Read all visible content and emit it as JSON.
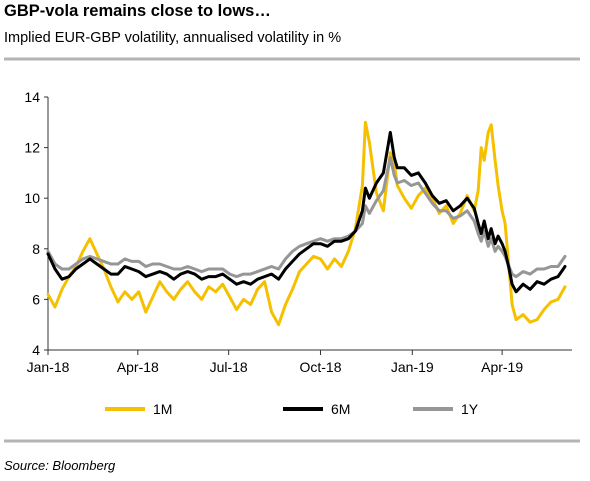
{
  "title": "GBP-vola remains close to lows…",
  "subtitle": "Implied EUR-GBP volatility, annualised volatility in %",
  "source": "Source: Bloomberg",
  "colors": {
    "1M": "#F5C000",
    "6M": "#000000",
    "1Y": "#969696",
    "rule": "#b4b4b4",
    "axis": "#333333"
  },
  "chart_data": {
    "type": "line",
    "ylim": [
      4,
      14
    ],
    "yticks": [
      4,
      6,
      8,
      10,
      12,
      14
    ],
    "xlim": [
      "2018-01-01",
      "2019-06-10"
    ],
    "xticks": [
      {
        "date": "2018-01-01",
        "label": "Jan-18"
      },
      {
        "date": "2018-04-01",
        "label": "Apr-18"
      },
      {
        "date": "2018-07-01",
        "label": "Jul-18"
      },
      {
        "date": "2018-10-01",
        "label": "Oct-18"
      },
      {
        "date": "2019-01-01",
        "label": "Jan-19"
      },
      {
        "date": "2019-04-01",
        "label": "Apr-19"
      }
    ],
    "legend_position": "bottom",
    "series": [
      {
        "name": "1M",
        "points": [
          [
            "2018-01-01",
            6.2
          ],
          [
            "2018-01-08",
            5.7
          ],
          [
            "2018-01-15",
            6.4
          ],
          [
            "2018-01-22",
            6.9
          ],
          [
            "2018-01-29",
            7.3
          ],
          [
            "2018-02-05",
            7.9
          ],
          [
            "2018-02-12",
            8.4
          ],
          [
            "2018-02-19",
            7.8
          ],
          [
            "2018-02-26",
            7.2
          ],
          [
            "2018-03-05",
            6.5
          ],
          [
            "2018-03-12",
            5.9
          ],
          [
            "2018-03-19",
            6.3
          ],
          [
            "2018-03-26",
            6.0
          ],
          [
            "2018-04-02",
            6.3
          ],
          [
            "2018-04-09",
            5.5
          ],
          [
            "2018-04-16",
            6.1
          ],
          [
            "2018-04-23",
            6.7
          ],
          [
            "2018-04-30",
            6.3
          ],
          [
            "2018-05-07",
            6.0
          ],
          [
            "2018-05-14",
            6.4
          ],
          [
            "2018-05-21",
            6.7
          ],
          [
            "2018-05-28",
            6.3
          ],
          [
            "2018-06-04",
            6.0
          ],
          [
            "2018-06-11",
            6.5
          ],
          [
            "2018-06-18",
            6.3
          ],
          [
            "2018-06-25",
            6.6
          ],
          [
            "2018-07-02",
            6.1
          ],
          [
            "2018-07-09",
            5.6
          ],
          [
            "2018-07-16",
            6.0
          ],
          [
            "2018-07-23",
            5.8
          ],
          [
            "2018-07-30",
            6.4
          ],
          [
            "2018-08-06",
            6.7
          ],
          [
            "2018-08-13",
            5.5
          ],
          [
            "2018-08-20",
            5.0
          ],
          [
            "2018-08-27",
            5.8
          ],
          [
            "2018-09-03",
            6.4
          ],
          [
            "2018-09-10",
            7.1
          ],
          [
            "2018-09-17",
            7.4
          ],
          [
            "2018-09-24",
            7.7
          ],
          [
            "2018-10-01",
            7.6
          ],
          [
            "2018-10-08",
            7.2
          ],
          [
            "2018-10-15",
            7.6
          ],
          [
            "2018-10-22",
            7.3
          ],
          [
            "2018-10-29",
            7.9
          ],
          [
            "2018-11-05",
            8.8
          ],
          [
            "2018-11-12",
            10.5
          ],
          [
            "2018-11-15",
            13.0
          ],
          [
            "2018-11-19",
            12.2
          ],
          [
            "2018-11-26",
            10.2
          ],
          [
            "2018-12-03",
            9.5
          ],
          [
            "2018-12-10",
            11.8
          ],
          [
            "2018-12-14",
            11.4
          ],
          [
            "2018-12-17",
            10.5
          ],
          [
            "2018-12-24",
            10.0
          ],
          [
            "2018-12-31",
            9.6
          ],
          [
            "2019-01-07",
            10.1
          ],
          [
            "2019-01-14",
            10.4
          ],
          [
            "2019-01-21",
            10.0
          ],
          [
            "2019-01-28",
            9.4
          ],
          [
            "2019-02-04",
            9.7
          ],
          [
            "2019-02-11",
            9.0
          ],
          [
            "2019-02-18",
            9.4
          ],
          [
            "2019-02-25",
            10.1
          ],
          [
            "2019-03-04",
            9.5
          ],
          [
            "2019-03-08",
            10.3
          ],
          [
            "2019-03-11",
            12.0
          ],
          [
            "2019-03-14",
            11.5
          ],
          [
            "2019-03-18",
            12.6
          ],
          [
            "2019-03-21",
            12.9
          ],
          [
            "2019-03-25",
            11.5
          ],
          [
            "2019-03-28",
            10.5
          ],
          [
            "2019-04-01",
            9.5
          ],
          [
            "2019-04-04",
            9.0
          ],
          [
            "2019-04-08",
            7.2
          ],
          [
            "2019-04-11",
            5.8
          ],
          [
            "2019-04-15",
            5.2
          ],
          [
            "2019-04-22",
            5.4
          ],
          [
            "2019-04-29",
            5.1
          ],
          [
            "2019-05-06",
            5.2
          ],
          [
            "2019-05-13",
            5.6
          ],
          [
            "2019-05-20",
            5.9
          ],
          [
            "2019-05-27",
            6.0
          ],
          [
            "2019-06-03",
            6.5
          ]
        ]
      },
      {
        "name": "6M",
        "points": [
          [
            "2018-01-01",
            7.8
          ],
          [
            "2018-01-08",
            7.2
          ],
          [
            "2018-01-15",
            6.8
          ],
          [
            "2018-01-22",
            6.9
          ],
          [
            "2018-01-29",
            7.2
          ],
          [
            "2018-02-05",
            7.4
          ],
          [
            "2018-02-12",
            7.6
          ],
          [
            "2018-02-19",
            7.4
          ],
          [
            "2018-02-26",
            7.2
          ],
          [
            "2018-03-05",
            7.0
          ],
          [
            "2018-03-12",
            7.0
          ],
          [
            "2018-03-19",
            7.3
          ],
          [
            "2018-03-26",
            7.2
          ],
          [
            "2018-04-02",
            7.1
          ],
          [
            "2018-04-09",
            6.9
          ],
          [
            "2018-04-16",
            7.0
          ],
          [
            "2018-04-23",
            7.1
          ],
          [
            "2018-04-30",
            7.0
          ],
          [
            "2018-05-07",
            6.8
          ],
          [
            "2018-05-14",
            7.0
          ],
          [
            "2018-05-21",
            7.1
          ],
          [
            "2018-05-28",
            7.0
          ],
          [
            "2018-06-04",
            6.8
          ],
          [
            "2018-06-11",
            6.9
          ],
          [
            "2018-06-18",
            6.9
          ],
          [
            "2018-06-25",
            7.0
          ],
          [
            "2018-07-02",
            6.8
          ],
          [
            "2018-07-09",
            6.6
          ],
          [
            "2018-07-16",
            6.7
          ],
          [
            "2018-07-23",
            6.6
          ],
          [
            "2018-07-30",
            6.8
          ],
          [
            "2018-08-06",
            6.9
          ],
          [
            "2018-08-13",
            7.0
          ],
          [
            "2018-08-20",
            6.8
          ],
          [
            "2018-08-27",
            7.2
          ],
          [
            "2018-09-03",
            7.5
          ],
          [
            "2018-09-10",
            7.8
          ],
          [
            "2018-09-17",
            8.0
          ],
          [
            "2018-09-24",
            8.2
          ],
          [
            "2018-10-01",
            8.2
          ],
          [
            "2018-10-08",
            8.1
          ],
          [
            "2018-10-15",
            8.3
          ],
          [
            "2018-10-22",
            8.3
          ],
          [
            "2018-10-29",
            8.4
          ],
          [
            "2018-11-05",
            8.7
          ],
          [
            "2018-11-12",
            9.5
          ],
          [
            "2018-11-15",
            10.4
          ],
          [
            "2018-11-19",
            10.0
          ],
          [
            "2018-11-26",
            10.6
          ],
          [
            "2018-12-03",
            11.0
          ],
          [
            "2018-12-10",
            12.6
          ],
          [
            "2018-12-14",
            11.6
          ],
          [
            "2018-12-17",
            11.2
          ],
          [
            "2018-12-24",
            11.2
          ],
          [
            "2018-12-31",
            10.9
          ],
          [
            "2019-01-07",
            11.0
          ],
          [
            "2019-01-14",
            10.6
          ],
          [
            "2019-01-21",
            10.1
          ],
          [
            "2019-01-28",
            9.8
          ],
          [
            "2019-02-04",
            9.9
          ],
          [
            "2019-02-11",
            9.5
          ],
          [
            "2019-02-18",
            9.7
          ],
          [
            "2019-02-25",
            10.0
          ],
          [
            "2019-03-04",
            9.6
          ],
          [
            "2019-03-08",
            9.0
          ],
          [
            "2019-03-11",
            8.6
          ],
          [
            "2019-03-14",
            9.1
          ],
          [
            "2019-03-18",
            8.4
          ],
          [
            "2019-03-21",
            8.8
          ],
          [
            "2019-03-25",
            8.2
          ],
          [
            "2019-03-28",
            8.5
          ],
          [
            "2019-04-01",
            8.2
          ],
          [
            "2019-04-04",
            7.9
          ],
          [
            "2019-04-08",
            7.2
          ],
          [
            "2019-04-11",
            6.6
          ],
          [
            "2019-04-15",
            6.3
          ],
          [
            "2019-04-22",
            6.6
          ],
          [
            "2019-04-29",
            6.4
          ],
          [
            "2019-05-06",
            6.7
          ],
          [
            "2019-05-13",
            6.6
          ],
          [
            "2019-05-20",
            6.8
          ],
          [
            "2019-05-27",
            6.9
          ],
          [
            "2019-06-03",
            7.3
          ]
        ]
      },
      {
        "name": "1Y",
        "points": [
          [
            "2018-01-01",
            7.9
          ],
          [
            "2018-01-08",
            7.4
          ],
          [
            "2018-01-15",
            7.2
          ],
          [
            "2018-01-22",
            7.2
          ],
          [
            "2018-01-29",
            7.4
          ],
          [
            "2018-02-05",
            7.6
          ],
          [
            "2018-02-12",
            7.7
          ],
          [
            "2018-02-19",
            7.6
          ],
          [
            "2018-02-26",
            7.5
          ],
          [
            "2018-03-05",
            7.4
          ],
          [
            "2018-03-12",
            7.4
          ],
          [
            "2018-03-19",
            7.6
          ],
          [
            "2018-03-26",
            7.5
          ],
          [
            "2018-04-02",
            7.5
          ],
          [
            "2018-04-09",
            7.3
          ],
          [
            "2018-04-16",
            7.4
          ],
          [
            "2018-04-23",
            7.4
          ],
          [
            "2018-04-30",
            7.3
          ],
          [
            "2018-05-07",
            7.2
          ],
          [
            "2018-05-14",
            7.2
          ],
          [
            "2018-05-21",
            7.3
          ],
          [
            "2018-05-28",
            7.2
          ],
          [
            "2018-06-04",
            7.1
          ],
          [
            "2018-06-11",
            7.2
          ],
          [
            "2018-06-18",
            7.2
          ],
          [
            "2018-06-25",
            7.2
          ],
          [
            "2018-07-02",
            7.0
          ],
          [
            "2018-07-09",
            6.9
          ],
          [
            "2018-07-16",
            7.0
          ],
          [
            "2018-07-23",
            7.0
          ],
          [
            "2018-07-30",
            7.1
          ],
          [
            "2018-08-06",
            7.2
          ],
          [
            "2018-08-13",
            7.3
          ],
          [
            "2018-08-20",
            7.2
          ],
          [
            "2018-08-27",
            7.6
          ],
          [
            "2018-09-03",
            7.9
          ],
          [
            "2018-09-10",
            8.1
          ],
          [
            "2018-09-17",
            8.2
          ],
          [
            "2018-09-24",
            8.3
          ],
          [
            "2018-10-01",
            8.4
          ],
          [
            "2018-10-08",
            8.3
          ],
          [
            "2018-10-15",
            8.4
          ],
          [
            "2018-10-22",
            8.4
          ],
          [
            "2018-10-29",
            8.5
          ],
          [
            "2018-11-05",
            8.7
          ],
          [
            "2018-11-12",
            9.0
          ],
          [
            "2018-11-15",
            9.7
          ],
          [
            "2018-11-19",
            9.4
          ],
          [
            "2018-11-26",
            9.9
          ],
          [
            "2018-12-03",
            10.3
          ],
          [
            "2018-12-10",
            11.6
          ],
          [
            "2018-12-14",
            10.9
          ],
          [
            "2018-12-17",
            10.6
          ],
          [
            "2018-12-24",
            10.7
          ],
          [
            "2018-12-31",
            10.5
          ],
          [
            "2019-01-07",
            10.6
          ],
          [
            "2019-01-14",
            10.2
          ],
          [
            "2019-01-21",
            9.8
          ],
          [
            "2019-01-28",
            9.5
          ],
          [
            "2019-02-04",
            9.5
          ],
          [
            "2019-02-11",
            9.2
          ],
          [
            "2019-02-18",
            9.3
          ],
          [
            "2019-02-25",
            9.5
          ],
          [
            "2019-03-04",
            9.1
          ],
          [
            "2019-03-08",
            8.6
          ],
          [
            "2019-03-11",
            8.3
          ],
          [
            "2019-03-14",
            8.7
          ],
          [
            "2019-03-18",
            8.1
          ],
          [
            "2019-03-21",
            8.4
          ],
          [
            "2019-03-25",
            7.9
          ],
          [
            "2019-03-28",
            8.1
          ],
          [
            "2019-04-01",
            7.9
          ],
          [
            "2019-04-04",
            7.7
          ],
          [
            "2019-04-08",
            7.3
          ],
          [
            "2019-04-11",
            7.0
          ],
          [
            "2019-04-15",
            6.9
          ],
          [
            "2019-04-22",
            7.1
          ],
          [
            "2019-04-29",
            7.0
          ],
          [
            "2019-05-06",
            7.2
          ],
          [
            "2019-05-13",
            7.2
          ],
          [
            "2019-05-20",
            7.3
          ],
          [
            "2019-05-27",
            7.3
          ],
          [
            "2019-06-03",
            7.7
          ]
        ]
      }
    ]
  }
}
